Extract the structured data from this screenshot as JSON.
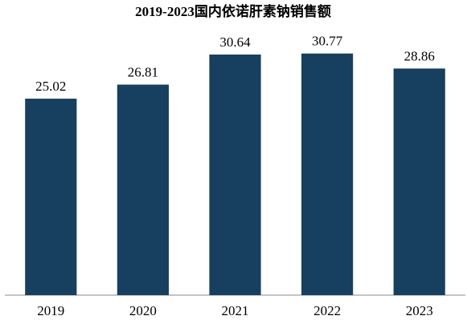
{
  "chart_data": {
    "type": "bar",
    "title": "2019-2023国内依诺肝素钠销售额",
    "categories": [
      "2019",
      "2020",
      "2021",
      "2022",
      "2023"
    ],
    "values": [
      25.02,
      26.81,
      30.64,
      30.77,
      28.86
    ],
    "color": "#173f5f",
    "ylim": [
      0,
      33.5
    ]
  }
}
